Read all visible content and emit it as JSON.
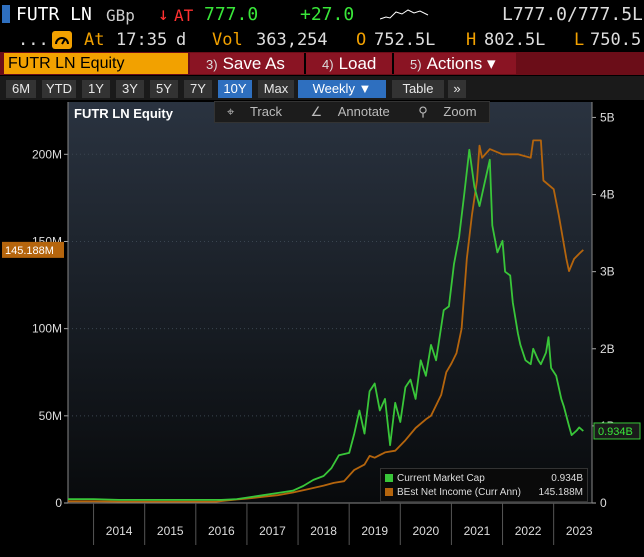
{
  "quote": {
    "ticker": "FUTR LN",
    "currency": "GBp",
    "arrow": "↓",
    "at_label": "AT",
    "last": "777.0",
    "change": "+27.0",
    "bid_ask": "L777.0/777.5L",
    "dots": "...",
    "time_prefix": "At",
    "time": "17:35",
    "time_suffix": "d",
    "vol_label": "Vol",
    "volume": "363,254",
    "open_label": "O",
    "open": "752.5L",
    "high_label": "H",
    "high": "802.5L",
    "low_label": "L",
    "low": "750.5"
  },
  "command": {
    "security": "FUTR LN Equity",
    "buttons": [
      {
        "num": "3)",
        "label": "Save As"
      },
      {
        "num": "4)",
        "label": "Load"
      },
      {
        "num": "5)",
        "label": "Actions ▾"
      }
    ]
  },
  "toolbar": {
    "ranges": [
      "6M",
      "YTD",
      "1Y",
      "3Y",
      "5Y",
      "7Y",
      "10Y",
      "Max"
    ],
    "active_range": "10Y",
    "frequency": "Weekly ▼",
    "table": "Table",
    "more": "»"
  },
  "tools": {
    "track": "Track",
    "annotate": "Annotate",
    "zoom": "Zoom"
  },
  "colors": {
    "market_cap": "#39c639",
    "net_income": "#b5650d",
    "accent": "#f2a100"
  },
  "chart_data": {
    "type": "line",
    "title": "FUTR LN Equity",
    "x_ticks": [
      "2014",
      "2015",
      "2016",
      "2017",
      "2018",
      "2019",
      "2020",
      "2021",
      "2022",
      "2023"
    ],
    "x_range": [
      2013.5,
      2023.75
    ],
    "left_axis": {
      "ticks": [
        "0",
        "50M",
        "100M",
        "150M",
        "200M"
      ],
      "range": [
        0,
        230
      ]
    },
    "right_axis": {
      "ticks": [
        "0",
        "1B",
        "2B",
        "3B",
        "4B",
        "5B"
      ],
      "range": [
        0,
        5.2
      ]
    },
    "current_label_left": "145.188M",
    "current_label_right": "0.934B",
    "series": [
      {
        "name": "Current Market Cap",
        "axis": "right",
        "last_value": "0.934B",
        "points": [
          [
            2013.5,
            0.05
          ],
          [
            2014.0,
            0.05
          ],
          [
            2014.5,
            0.04
          ],
          [
            2015.0,
            0.04
          ],
          [
            2015.5,
            0.04
          ],
          [
            2016.0,
            0.04
          ],
          [
            2016.5,
            0.04
          ],
          [
            2016.8,
            0.05
          ],
          [
            2017.0,
            0.07
          ],
          [
            2017.3,
            0.1
          ],
          [
            2017.6,
            0.13
          ],
          [
            2017.9,
            0.16
          ],
          [
            2018.1,
            0.22
          ],
          [
            2018.3,
            0.3
          ],
          [
            2018.5,
            0.35
          ],
          [
            2018.65,
            0.45
          ],
          [
            2018.8,
            0.62
          ],
          [
            2019.0,
            0.65
          ],
          [
            2019.1,
            0.9
          ],
          [
            2019.2,
            1.2
          ],
          [
            2019.3,
            0.9
          ],
          [
            2019.4,
            1.45
          ],
          [
            2019.5,
            1.55
          ],
          [
            2019.6,
            1.2
          ],
          [
            2019.7,
            1.35
          ],
          [
            2019.8,
            0.75
          ],
          [
            2019.9,
            1.3
          ],
          [
            2020.0,
            1.05
          ],
          [
            2020.1,
            1.5
          ],
          [
            2020.2,
            1.6
          ],
          [
            2020.3,
            1.35
          ],
          [
            2020.4,
            1.85
          ],
          [
            2020.5,
            1.65
          ],
          [
            2020.6,
            2.05
          ],
          [
            2020.7,
            1.85
          ],
          [
            2020.85,
            2.5
          ],
          [
            2020.95,
            2.55
          ],
          [
            2021.05,
            3.1
          ],
          [
            2021.15,
            3.45
          ],
          [
            2021.25,
            4.0
          ],
          [
            2021.35,
            4.58
          ],
          [
            2021.45,
            4.1
          ],
          [
            2021.55,
            3.85
          ],
          [
            2021.65,
            4.15
          ],
          [
            2021.75,
            4.45
          ],
          [
            2021.8,
            3.6
          ],
          [
            2021.9,
            3.25
          ],
          [
            2022.0,
            3.4
          ],
          [
            2022.05,
            3.0
          ],
          [
            2022.15,
            2.95
          ],
          [
            2022.2,
            2.6
          ],
          [
            2022.3,
            2.2
          ],
          [
            2022.35,
            2.05
          ],
          [
            2022.45,
            1.85
          ],
          [
            2022.55,
            1.8
          ],
          [
            2022.6,
            2.0
          ],
          [
            2022.7,
            1.85
          ],
          [
            2022.75,
            1.8
          ],
          [
            2022.85,
            1.95
          ],
          [
            2022.9,
            2.15
          ],
          [
            2022.95,
            1.75
          ],
          [
            2023.05,
            1.65
          ],
          [
            2023.15,
            1.35
          ],
          [
            2023.2,
            1.25
          ],
          [
            2023.3,
            1.0
          ],
          [
            2023.35,
            0.88
          ],
          [
            2023.45,
            0.94
          ],
          [
            2023.5,
            0.98
          ],
          [
            2023.58,
            0.934
          ]
        ]
      },
      {
        "name": "BEst Net Income (Curr Ann)",
        "axis": "left",
        "last_value": "145.188M",
        "points": [
          [
            2013.5,
            1.0
          ],
          [
            2014.0,
            1.0
          ],
          [
            2014.5,
            0.8
          ],
          [
            2015.0,
            0.8
          ],
          [
            2015.5,
            0.8
          ],
          [
            2016.0,
            0.8
          ],
          [
            2016.4,
            0.8
          ],
          [
            2016.8,
            2.0
          ],
          [
            2017.0,
            2.5
          ],
          [
            2017.3,
            3.5
          ],
          [
            2017.6,
            4.5
          ],
          [
            2017.9,
            6.0
          ],
          [
            2018.2,
            8.0
          ],
          [
            2018.5,
            10.0
          ],
          [
            2018.7,
            11.5
          ],
          [
            2018.9,
            12.5
          ],
          [
            2019.1,
            19.0
          ],
          [
            2019.3,
            22.0
          ],
          [
            2019.4,
            27.0
          ],
          [
            2019.5,
            26.0
          ],
          [
            2019.7,
            29.0
          ],
          [
            2019.9,
            30.0
          ],
          [
            2020.1,
            36.0
          ],
          [
            2020.3,
            43.0
          ],
          [
            2020.5,
            48.0
          ],
          [
            2020.6,
            50.0
          ],
          [
            2020.8,
            62.0
          ],
          [
            2020.9,
            75.0
          ],
          [
            2021.0,
            80.0
          ],
          [
            2021.1,
            86.0
          ],
          [
            2021.2,
            100.0
          ],
          [
            2021.3,
            140.0
          ],
          [
            2021.4,
            165.0
          ],
          [
            2021.5,
            185.0
          ],
          [
            2021.55,
            205.0
          ],
          [
            2021.6,
            198.0
          ],
          [
            2021.75,
            203.0
          ],
          [
            2022.0,
            200.0
          ],
          [
            2022.3,
            200.0
          ],
          [
            2022.55,
            198.0
          ],
          [
            2022.6,
            208.0
          ],
          [
            2022.75,
            208.0
          ],
          [
            2022.8,
            185.0
          ],
          [
            2023.0,
            180.0
          ],
          [
            2023.1,
            165.0
          ],
          [
            2023.25,
            140.0
          ],
          [
            2023.3,
            133.0
          ],
          [
            2023.4,
            140.0
          ],
          [
            2023.5,
            143.0
          ],
          [
            2023.58,
            145.188
          ]
        ]
      }
    ]
  }
}
